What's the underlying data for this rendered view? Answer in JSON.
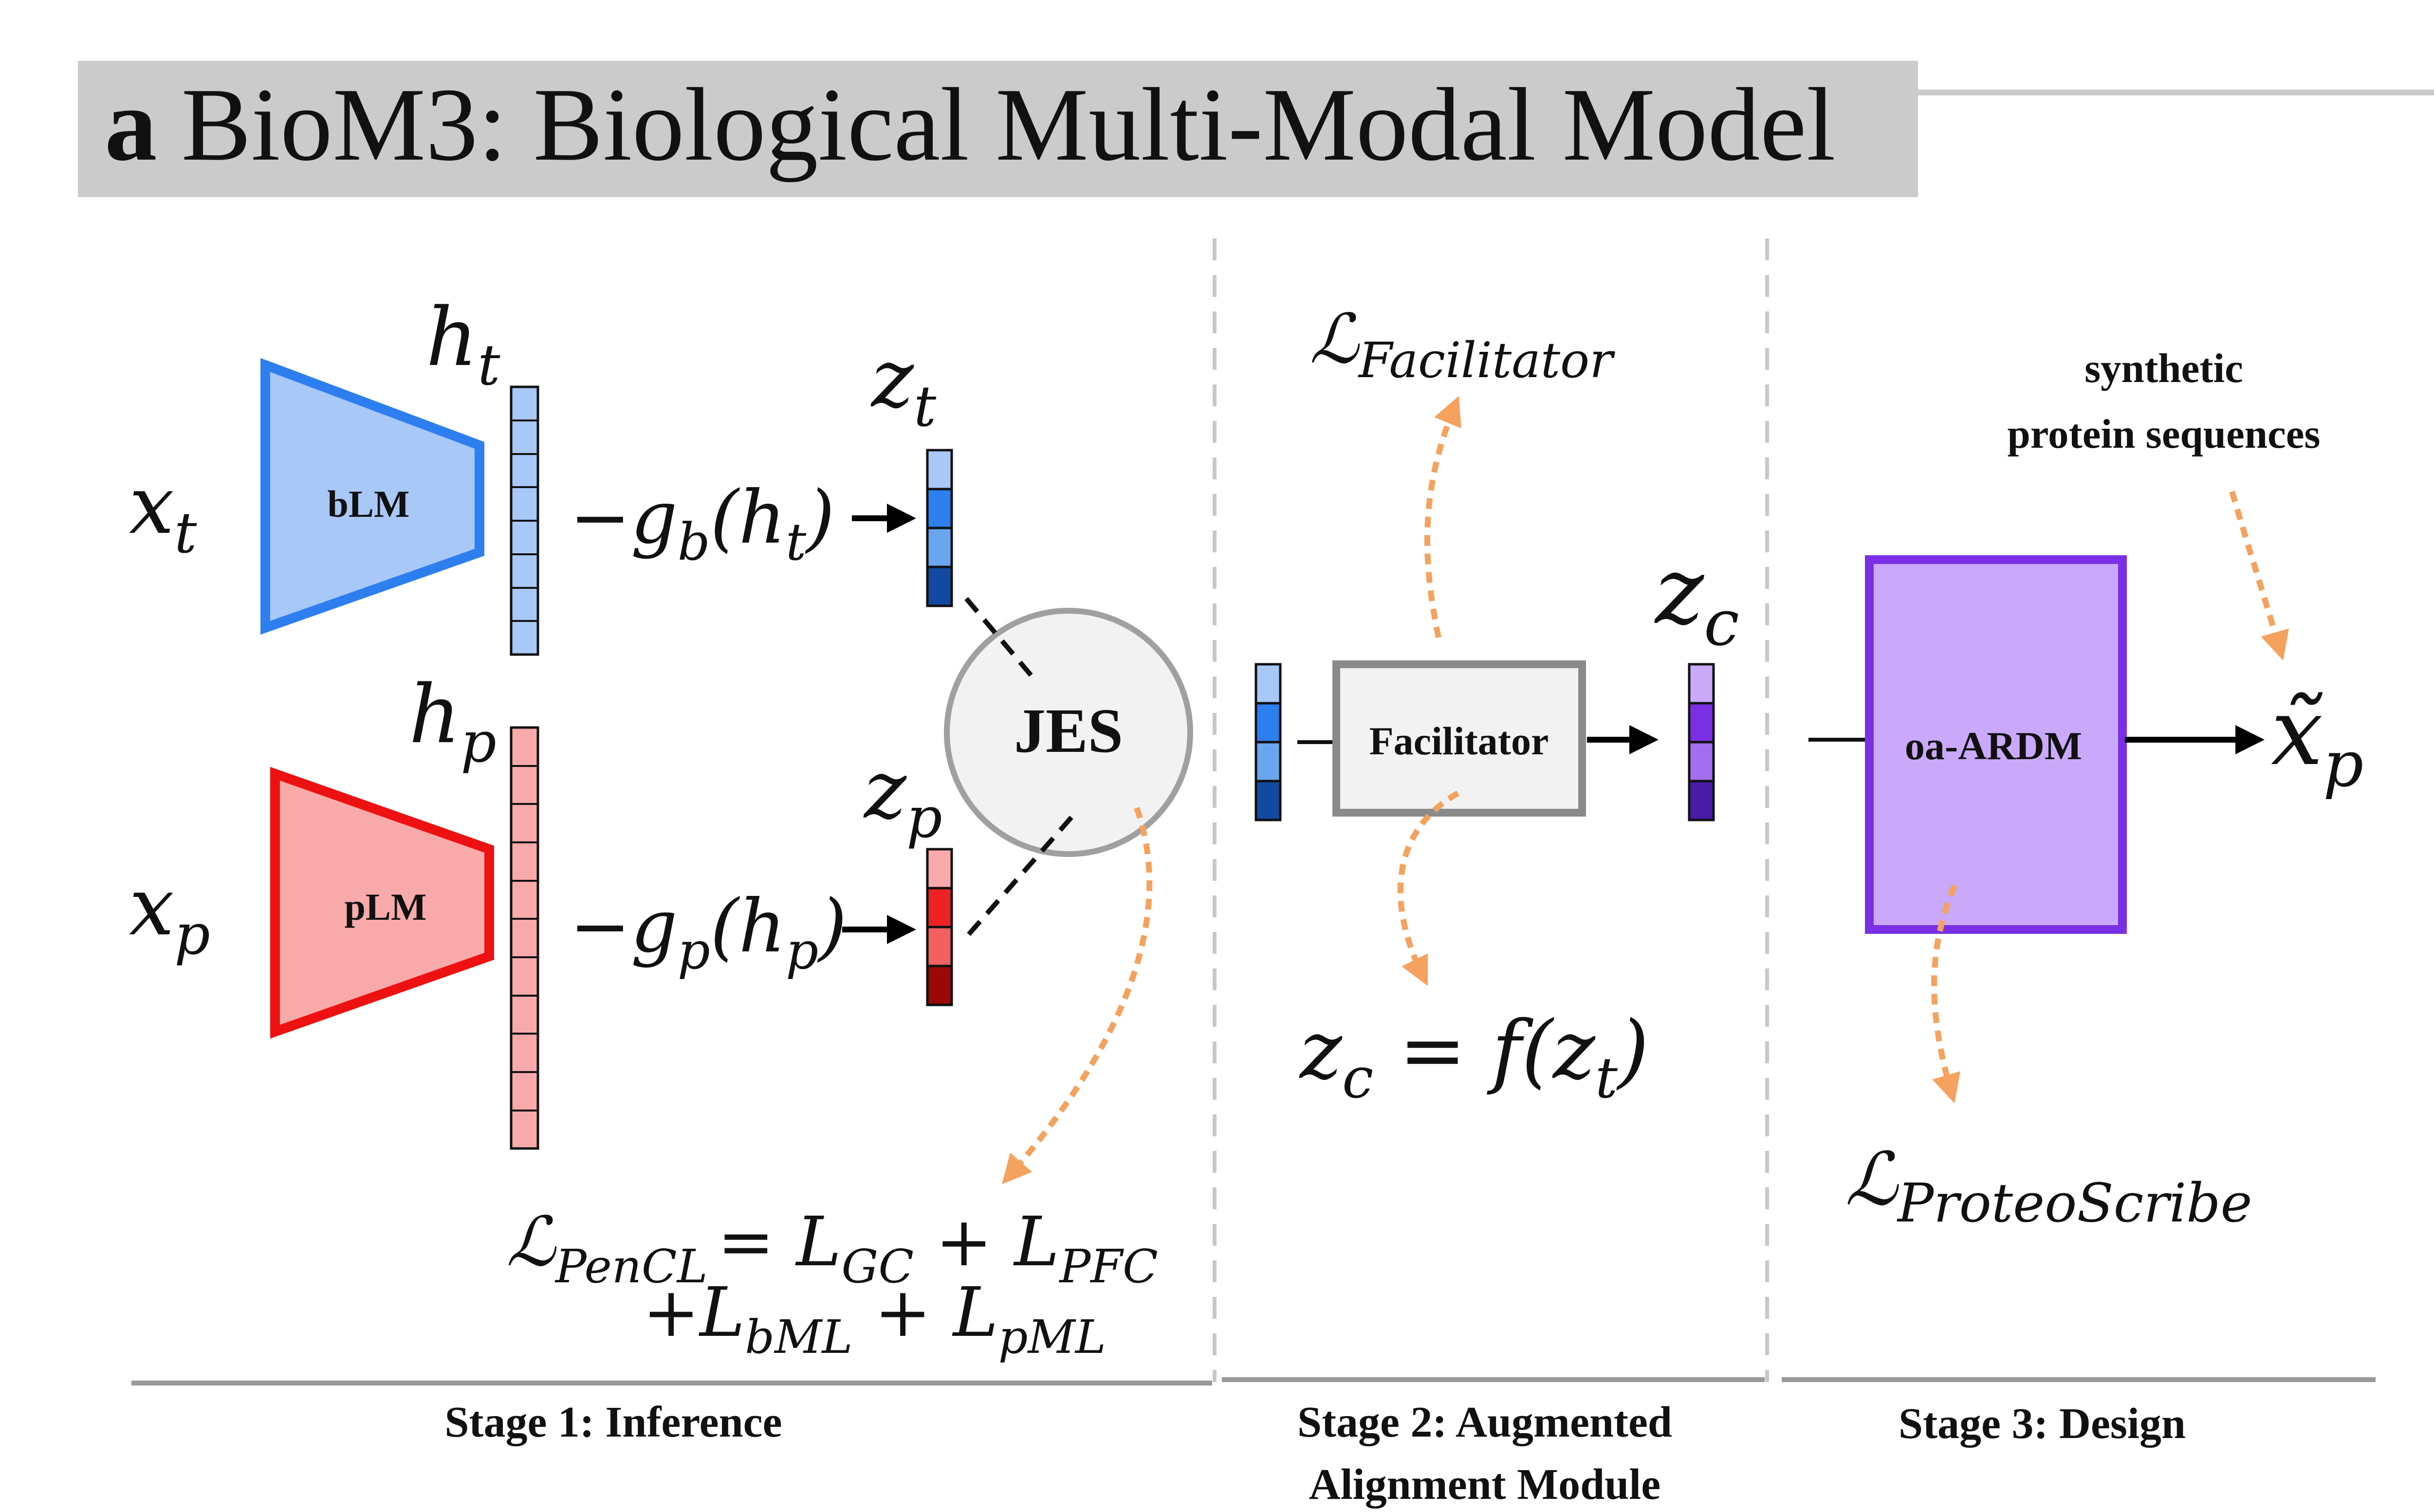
{
  "title": {
    "panel_letter": "a",
    "text": "BioM3: Biological Multi-Modal Model"
  },
  "colors": {
    "text_blue_fill": "#a8c8f8",
    "text_blue_stroke": "#2d7ff0",
    "protein_red_fill": "#f8aaaa",
    "protein_red_stroke": "#ee1111",
    "design_purple_fill": "#caa9fb",
    "design_purple_stroke": "#7a2fe6",
    "loss_arrow_orange": "#f4a25e",
    "title_bar_gray": "#cbcbcb"
  },
  "stage1": {
    "text_input": "x",
    "text_input_sub": "t",
    "text_encoder": "bLM",
    "text_hidden": "h",
    "text_hidden_sub": "t",
    "text_projection": "−g",
    "text_projection_sub": "b",
    "text_projection_arg": "(h",
    "text_projection_arg_sub": "t",
    "text_projection_close": ")",
    "text_latent": "z",
    "text_latent_sub": "t",
    "protein_input": "x",
    "protein_input_sub": "p",
    "protein_encoder": "pLM",
    "protein_hidden": "h",
    "protein_hidden_sub": "p",
    "protein_projection": "−g",
    "protein_projection_sub": "p",
    "protein_projection_arg": "(h",
    "protein_projection_arg_sub": "p",
    "protein_projection_close": ")",
    "protein_latent": "z",
    "protein_latent_sub": "p",
    "joint_space": "JES",
    "loss_symbol": "ℒ",
    "loss_sub": "PenCL",
    "loss_rhs_line1": "= L",
    "loss_gc_sub": "GC",
    "loss_plus1": " + L",
    "loss_pfc_sub": "PFC",
    "loss_rhs_line2": "+L",
    "loss_bml_sub": "bML",
    "loss_plus2": " + L",
    "loss_pml_sub": "pML",
    "label": "Stage 1: Inference"
  },
  "stage2": {
    "module": "Facilitator",
    "loss_symbol": "ℒ",
    "loss_sub": "Facilitator",
    "output_latent": "z",
    "output_latent_sub": "c",
    "equation_lhs": "z",
    "equation_lhs_sub": "c",
    "equation_mid": " = f(z",
    "equation_arg_sub": "t",
    "equation_close": ")",
    "label_line1": "Stage 2: Augmented",
    "label_line2": "Alignment Module"
  },
  "stage3": {
    "model": "oa-ARDM",
    "input_note_line1": "synthetic",
    "input_note_line2": "protein sequences",
    "output": "x̃",
    "output_sub": "p",
    "loss_symbol": "ℒ",
    "loss_sub": "ProteoScribe",
    "label": "Stage 3: Design"
  }
}
